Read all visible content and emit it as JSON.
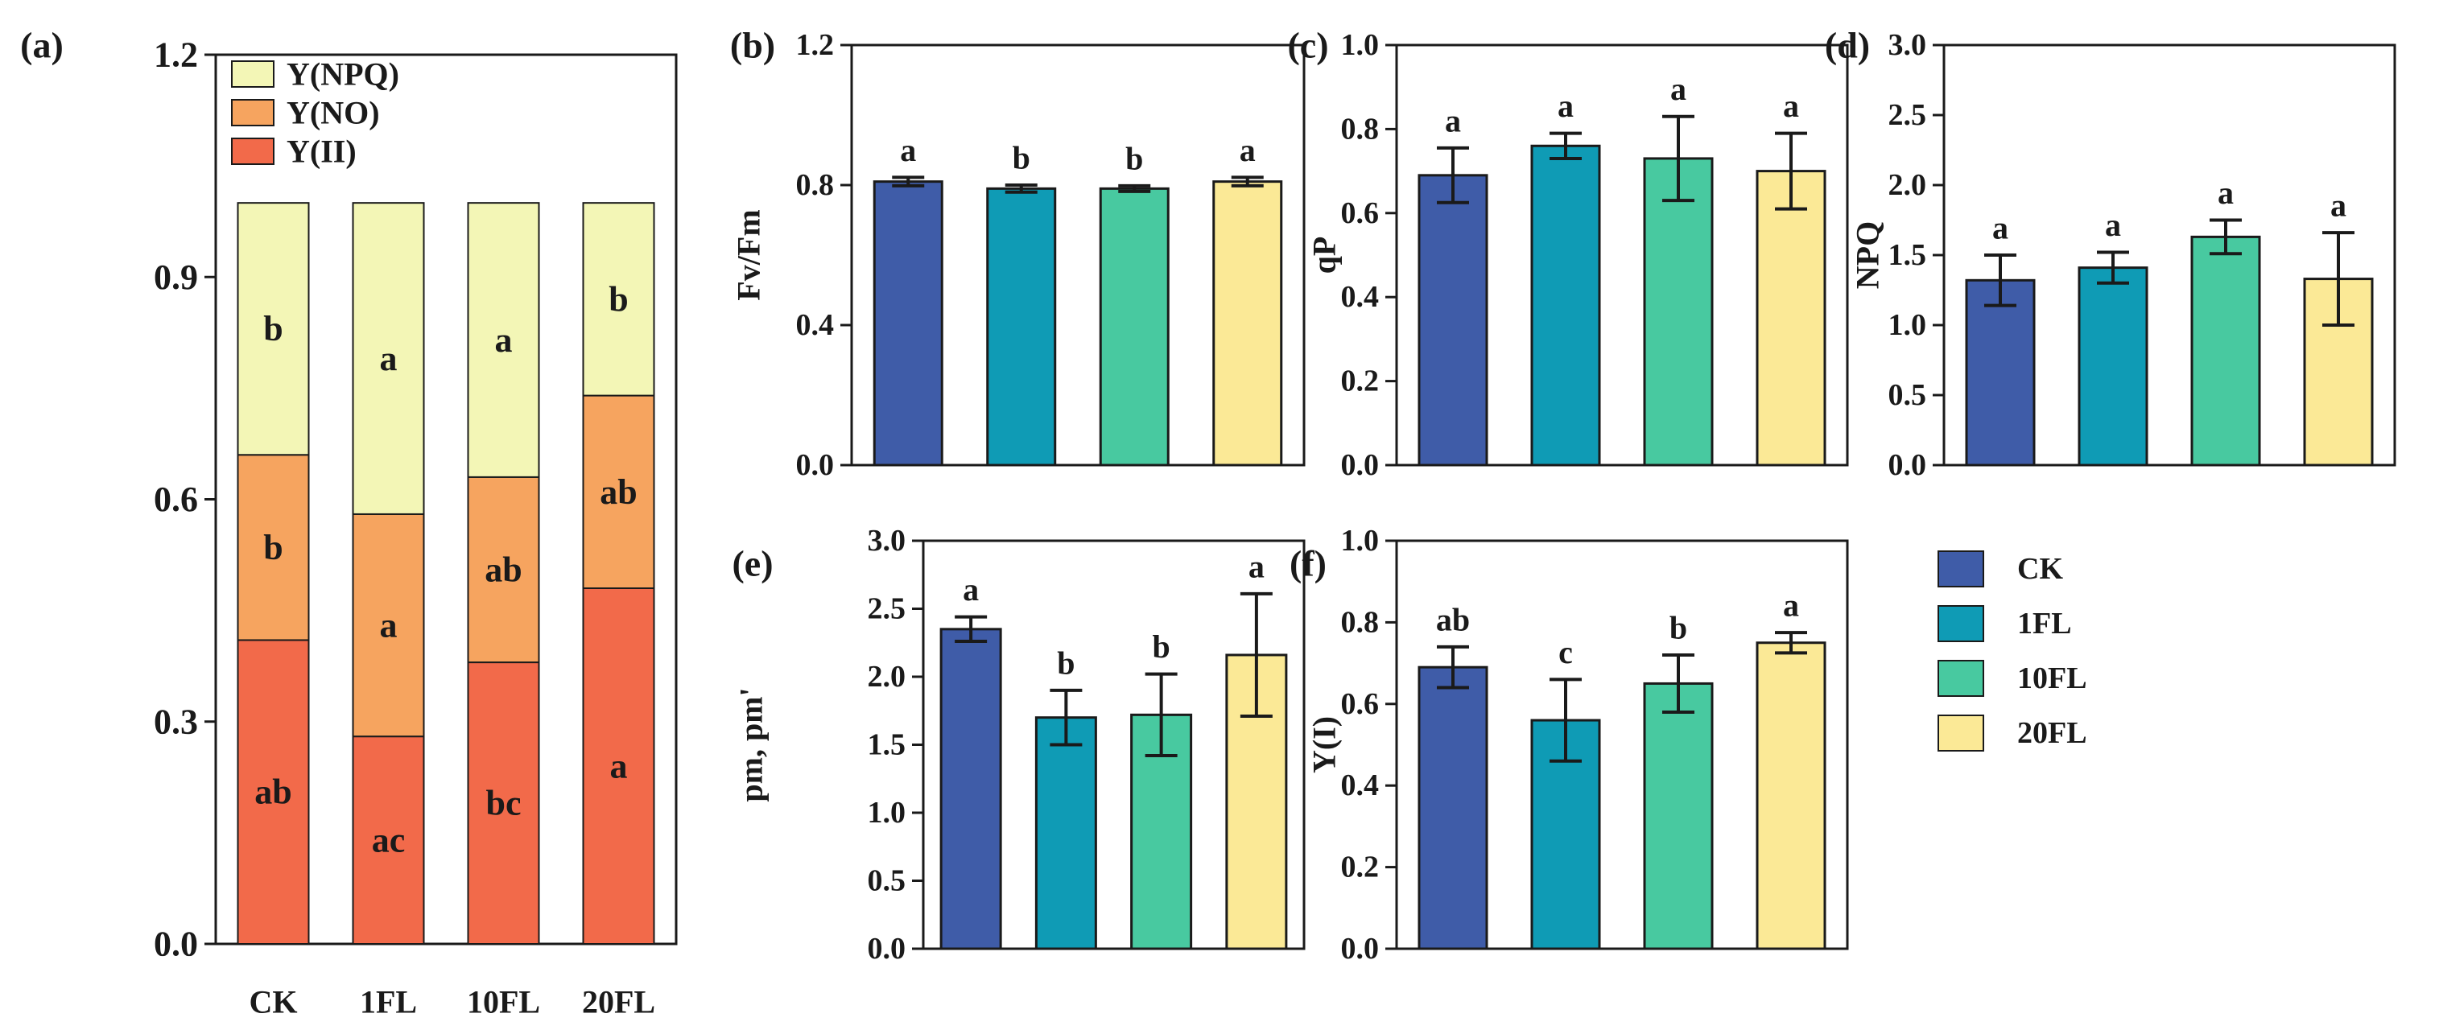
{
  "colors": {
    "CK": "#3f5ca8",
    "1FL": "#0f9bb5",
    "10FL": "#48c9a0",
    "20FL": "#fbe996",
    "YII": "#f26a4a",
    "YNO": "#f6a45f",
    "YNPQ": "#f3f6b6",
    "axis": "#1a1a1a"
  },
  "legend": {
    "items": [
      {
        "label": "CK",
        "color": "#3f5ca8"
      },
      {
        "label": "1FL",
        "color": "#0f9bb5"
      },
      {
        "label": "10FL",
        "color": "#48c9a0"
      },
      {
        "label": "20FL",
        "color": "#fbe996"
      }
    ]
  },
  "chart_data": [
    {
      "id": "a",
      "panel_label": "(a)",
      "type": "stacked-bar",
      "categories": [
        "CK",
        "1FL",
        "10FL",
        "20FL"
      ],
      "ylim": [
        0,
        1.2
      ],
      "yticks": [
        0.0,
        0.3,
        0.6,
        0.9,
        1.2
      ],
      "ytick_labels": [
        "0.0",
        "0.3",
        "0.6",
        "0.9",
        "1.2"
      ],
      "legend": [
        {
          "label": "Y(NPQ)",
          "color": "#f3f6b6"
        },
        {
          "label": "Y(NO)",
          "color": "#f6a45f"
        },
        {
          "label": "Y(II)",
          "color": "#f26a4a"
        }
      ],
      "series": [
        {
          "name": "Y(II)",
          "color": "#f26a4a",
          "values": [
            0.41,
            0.28,
            0.38,
            0.48
          ],
          "letters": [
            "ab",
            "ac",
            "bc",
            "a"
          ]
        },
        {
          "name": "Y(NO)",
          "color": "#f6a45f",
          "values": [
            0.25,
            0.3,
            0.25,
            0.26
          ],
          "letters": [
            "b",
            "a",
            "ab",
            "ab"
          ]
        },
        {
          "name": "Y(NPQ)",
          "color": "#f3f6b6",
          "values": [
            0.34,
            0.42,
            0.37,
            0.26
          ],
          "letters": [
            "b",
            "a",
            "a",
            "b"
          ]
        }
      ]
    },
    {
      "id": "b",
      "panel_label": "(b)",
      "type": "bar",
      "ylabel": "Fv/Fm",
      "categories": [
        "CK",
        "1FL",
        "10FL",
        "20FL"
      ],
      "values": [
        0.81,
        0.79,
        0.79,
        0.81
      ],
      "errors": [
        0.012,
        0.01,
        0.008,
        0.012
      ],
      "letters": [
        "a",
        "b",
        "b",
        "a"
      ],
      "ylim": [
        0,
        1.2
      ],
      "yticks": [
        0.0,
        0.4,
        0.8,
        1.2
      ],
      "ytick_labels": [
        "0.0",
        "0.4",
        "0.8",
        "1.2"
      ]
    },
    {
      "id": "c",
      "panel_label": "(c)",
      "type": "bar",
      "ylabel": "qP",
      "categories": [
        "CK",
        "1FL",
        "10FL",
        "20FL"
      ],
      "values": [
        0.69,
        0.76,
        0.73,
        0.7
      ],
      "errors": [
        0.065,
        0.03,
        0.1,
        0.09
      ],
      "letters": [
        "a",
        "a",
        "a",
        "a"
      ],
      "ylim": [
        0,
        1.0
      ],
      "yticks": [
        0.0,
        0.2,
        0.4,
        0.6,
        0.8,
        1.0
      ],
      "ytick_labels": [
        "0.0",
        "0.2",
        "0.4",
        "0.6",
        "0.8",
        "1.0"
      ]
    },
    {
      "id": "d",
      "panel_label": "(d)",
      "type": "bar",
      "ylabel": "NPQ",
      "categories": [
        "CK",
        "1FL",
        "10FL",
        "20FL"
      ],
      "values": [
        1.32,
        1.41,
        1.63,
        1.33
      ],
      "errors": [
        0.18,
        0.11,
        0.12,
        0.33
      ],
      "letters": [
        "a",
        "a",
        "a",
        "a"
      ],
      "ylim": [
        0,
        3.0
      ],
      "yticks": [
        0.0,
        0.5,
        1.0,
        1.5,
        2.0,
        2.5,
        3.0
      ],
      "ytick_labels": [
        "0.0",
        "0.5",
        "1.0",
        "1.5",
        "2.0",
        "2.5",
        "3.0"
      ]
    },
    {
      "id": "e",
      "panel_label": "(e)",
      "type": "bar",
      "ylabel": "pm,  pm'",
      "categories": [
        "CK",
        "1FL",
        "10FL",
        "20FL"
      ],
      "values": [
        2.35,
        1.7,
        1.72,
        2.16
      ],
      "errors": [
        0.09,
        0.2,
        0.3,
        0.45
      ],
      "letters": [
        "a",
        "b",
        "b",
        "a"
      ],
      "ylim": [
        0,
        3.0
      ],
      "yticks": [
        0.0,
        0.5,
        1.0,
        1.5,
        2.0,
        2.5,
        3.0
      ],
      "ytick_labels": [
        "0.0",
        "0.5",
        "1.0",
        "1.5",
        "2.0",
        "2.5",
        "3.0"
      ]
    },
    {
      "id": "f",
      "panel_label": "(f)",
      "type": "bar",
      "ylabel": "Y(I)",
      "categories": [
        "CK",
        "1FL",
        "10FL",
        "20FL"
      ],
      "values": [
        0.69,
        0.56,
        0.65,
        0.75
      ],
      "errors": [
        0.05,
        0.1,
        0.07,
        0.025
      ],
      "letters": [
        "ab",
        "c",
        "b",
        "a"
      ],
      "ylim": [
        0,
        1.0
      ],
      "yticks": [
        0.0,
        0.2,
        0.4,
        0.6,
        0.8,
        1.0
      ],
      "ytick_labels": [
        "0.0",
        "0.2",
        "0.4",
        "0.6",
        "0.8",
        "1.0"
      ]
    }
  ]
}
